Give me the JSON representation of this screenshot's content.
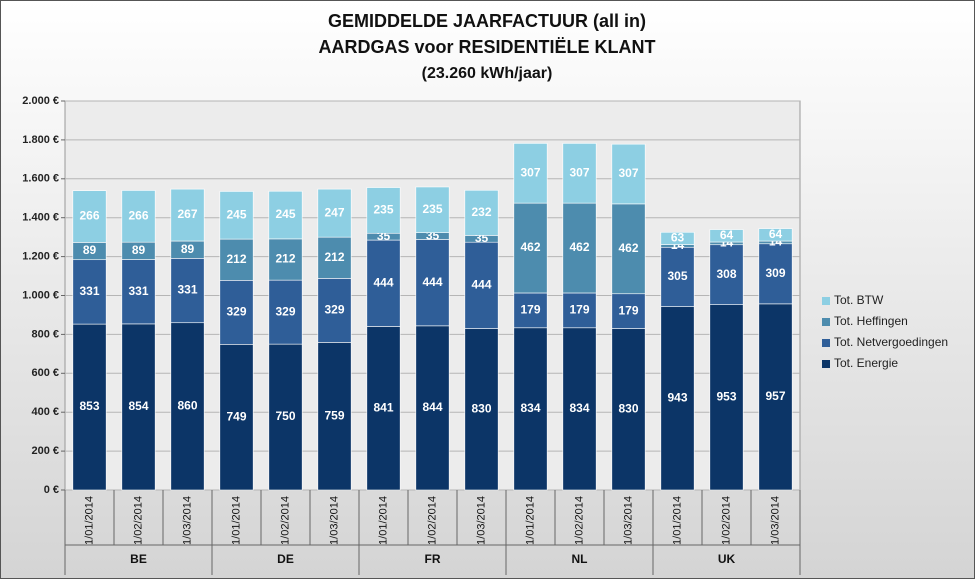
{
  "chart_data": {
    "type": "stacked-bar",
    "title": "GEMIDDELDE JAARFACTUUR (all in)",
    "subtitle": "AARDGAS voor RESIDENTIËLE KLANT",
    "note": "(23.260 kWh/jaar)",
    "groups": [
      {
        "label": "BE",
        "categories": [
          "1/01/2014",
          "1/02/2014",
          "1/03/2014"
        ]
      },
      {
        "label": "DE",
        "categories": [
          "1/01/2014",
          "1/02/2014",
          "1/03/2014"
        ]
      },
      {
        "label": "FR",
        "categories": [
          "1/01/2014",
          "1/02/2014",
          "1/03/2014"
        ]
      },
      {
        "label": "NL",
        "categories": [
          "1/01/2014",
          "1/02/2014",
          "1/03/2014"
        ]
      },
      {
        "label": "UK",
        "categories": [
          "1/01/2014",
          "1/02/2014",
          "1/03/2014"
        ]
      }
    ],
    "series": [
      {
        "name": "Tot. Energie",
        "color": "#0c3567",
        "values": [
          853,
          854,
          860,
          749,
          750,
          759,
          841,
          844,
          830,
          834,
          834,
          830,
          943,
          953,
          957
        ]
      },
      {
        "name": "Tot. Netvergoedingen",
        "color": "#2f5e98",
        "values": [
          331,
          331,
          331,
          329,
          329,
          329,
          444,
          444,
          444,
          179,
          179,
          179,
          305,
          308,
          309
        ]
      },
      {
        "name": "Tot. Heffingen",
        "color": "#4d8cae",
        "values": [
          89,
          89,
          89,
          212,
          212,
          212,
          35,
          35,
          35,
          462,
          462,
          462,
          14,
          14,
          14
        ]
      },
      {
        "name": "Tot. BTW",
        "color": "#8dcfe3",
        "values": [
          266,
          266,
          267,
          245,
          245,
          247,
          235,
          235,
          232,
          307,
          307,
          307,
          63,
          64,
          64
        ]
      }
    ],
    "ylim": [
      0,
      2000
    ],
    "yticks": [
      {
        "value": 0,
        "label": "0 €"
      },
      {
        "value": 200,
        "label": "200 €"
      },
      {
        "value": 400,
        "label": "400 €"
      },
      {
        "value": 600,
        "label": "600 €"
      },
      {
        "value": 800,
        "label": "800 €"
      },
      {
        "value": 1000,
        "label": "1.000 €"
      },
      {
        "value": 1200,
        "label": "1.200 €"
      },
      {
        "value": 1400,
        "label": "1.400 €"
      },
      {
        "value": 1600,
        "label": "1.600 €"
      },
      {
        "value": 1800,
        "label": "1.800 €"
      },
      {
        "value": 2000,
        "label": "2.000 €"
      }
    ],
    "grid": true,
    "legend": "right"
  }
}
